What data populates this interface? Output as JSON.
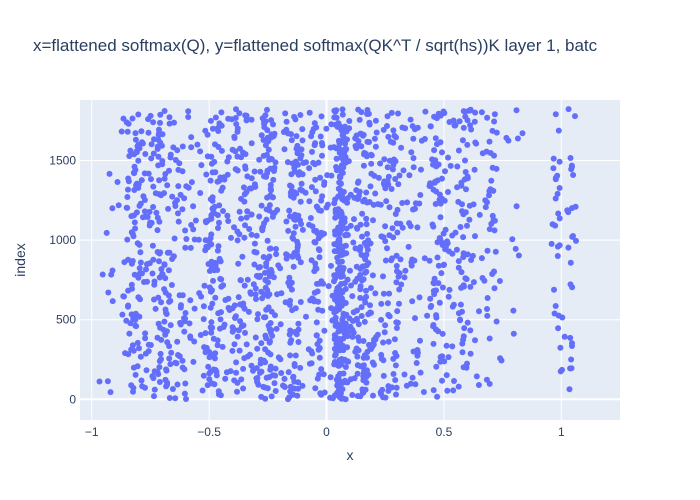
{
  "chart_data": {
    "type": "scatter",
    "title": "x=flattened softmax(Q), y=flattened softmax(QK^T / sqrt(hs))K layer 1, batc",
    "xlabel": "x",
    "ylabel": "index",
    "xlim": [
      -1.05,
      1.25
    ],
    "ylim": [
      -130,
      1880
    ],
    "xticks": [
      -1,
      -0.5,
      0,
      0.5,
      1
    ],
    "xtick_labels": [
      "−1",
      "−0.5",
      "0",
      "0.5",
      "1"
    ],
    "yticks": [
      0,
      500,
      1000,
      1500
    ],
    "ytick_labels": [
      "0",
      "500",
      "1000",
      "1500"
    ],
    "grid": true,
    "marker_color": "#636efa",
    "plot_bgcolor": "#e5ecf6",
    "point_count": 1824,
    "y_range": [
      0,
      1823
    ],
    "x_clusters": [
      {
        "center": -0.93,
        "spread": 0.03,
        "weight": 0.005
      },
      {
        "center": -0.82,
        "spread": 0.05,
        "weight": 0.06
      },
      {
        "center": -0.71,
        "spread": 0.06,
        "weight": 0.07
      },
      {
        "center": -0.6,
        "spread": 0.04,
        "weight": 0.03
      },
      {
        "center": -0.48,
        "spread": 0.05,
        "weight": 0.08
      },
      {
        "center": -0.37,
        "spread": 0.05,
        "weight": 0.06
      },
      {
        "center": -0.26,
        "spread": 0.05,
        "weight": 0.09
      },
      {
        "center": -0.14,
        "spread": 0.04,
        "weight": 0.07
      },
      {
        "center": -0.04,
        "spread": 0.04,
        "weight": 0.06
      },
      {
        "center": 0.06,
        "spread": 0.03,
        "weight": 0.17
      },
      {
        "center": 0.16,
        "spread": 0.05,
        "weight": 0.09
      },
      {
        "center": 0.27,
        "spread": 0.05,
        "weight": 0.06
      },
      {
        "center": 0.38,
        "spread": 0.04,
        "weight": 0.03
      },
      {
        "center": 0.48,
        "spread": 0.04,
        "weight": 0.06
      },
      {
        "center": 0.59,
        "spread": 0.05,
        "weight": 0.06
      },
      {
        "center": 0.7,
        "spread": 0.04,
        "weight": 0.025
      },
      {
        "center": 0.8,
        "spread": 0.03,
        "weight": 0.005
      },
      {
        "center": 0.98,
        "spread": 0.02,
        "weight": 0.02
      },
      {
        "center": 1.04,
        "spread": 0.02,
        "weight": 0.015
      }
    ]
  }
}
